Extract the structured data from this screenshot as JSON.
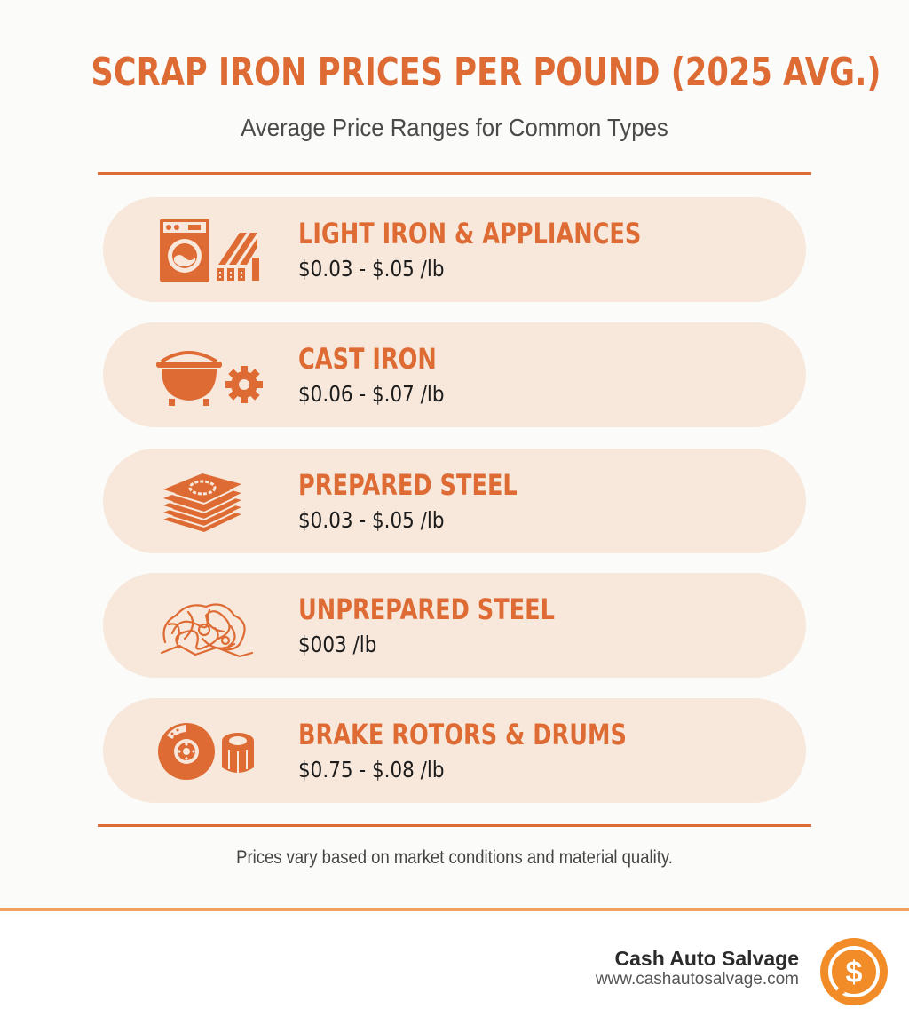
{
  "header": {
    "title": "SCRAP IRON PRICES PER POUND (2025 AVG.)",
    "subtitle": "Average Price Ranges for Common Types"
  },
  "items": [
    {
      "label": "LIGHT IRON & APPLIANCES",
      "price": "$0.03 - $.05 /lb",
      "icon": "washer-and-pipes-icon"
    },
    {
      "label": "CAST IRON",
      "price": "$0.06 - $.07 /lb",
      "icon": "cast-iron-pot-gear-icon"
    },
    {
      "label": "PREPARED STEEL",
      "price": "$0.03 - $.05 /lb",
      "icon": "stacked-steel-plates-icon"
    },
    {
      "label": "UNPREPARED STEEL",
      "price": "$003 /lb",
      "icon": "tangled-scrap-icon"
    },
    {
      "label": "BRAKE ROTORS & DRUMS",
      "price": "$0.75 - $.08 /lb",
      "icon": "brake-rotor-drum-icon"
    }
  ],
  "note": "Prices vary based on market conditions and material quality.",
  "footer": {
    "brand": "Cash Auto Salvage",
    "url": "www.cashautosalvage.com",
    "logo_icon": "dollar-coin-icon"
  },
  "colors": {
    "accent": "#dd6b33",
    "card": "#f8e8db",
    "background": "#fbfbfa"
  }
}
